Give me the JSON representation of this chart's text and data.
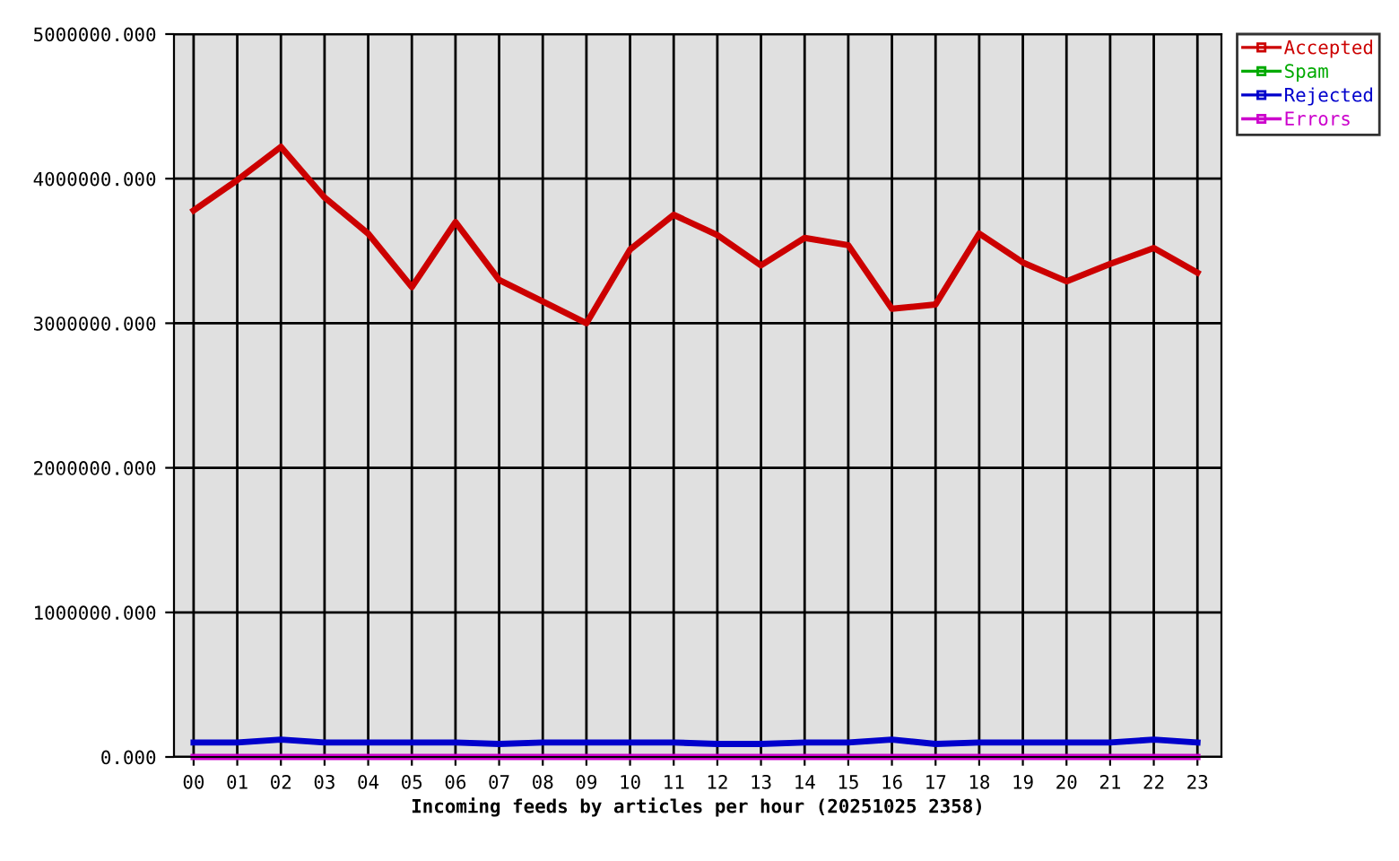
{
  "chart_data": {
    "type": "line",
    "xlabel": "Incoming feeds by articles per hour (20251025 2358)",
    "categories": [
      "00",
      "01",
      "02",
      "03",
      "04",
      "05",
      "06",
      "07",
      "08",
      "09",
      "10",
      "11",
      "12",
      "13",
      "14",
      "15",
      "16",
      "17",
      "18",
      "19",
      "20",
      "21",
      "22",
      "23"
    ],
    "series": [
      {
        "name": "Accepted",
        "color": "#cc0000",
        "values": [
          3780000,
          3990000,
          4220000,
          3870000,
          3620000,
          3250000,
          3700000,
          3300000,
          3150000,
          3000000,
          3510000,
          3750000,
          3610000,
          3400000,
          3590000,
          3540000,
          3100000,
          3130000,
          3620000,
          3420000,
          3290000,
          3410000,
          3520000,
          3350000
        ]
      },
      {
        "name": "Spam",
        "color": "#00aa00",
        "values": [
          null,
          null,
          null,
          null,
          null,
          null,
          null,
          null,
          null,
          null,
          null,
          null,
          null,
          null,
          null,
          null,
          null,
          null,
          null,
          null,
          null,
          null,
          null,
          null
        ]
      },
      {
        "name": "Rejected",
        "color": "#0000cc",
        "values": [
          100000,
          100000,
          120000,
          100000,
          100000,
          100000,
          100000,
          90000,
          100000,
          100000,
          100000,
          100000,
          90000,
          90000,
          100000,
          100000,
          120000,
          90000,
          100000,
          100000,
          100000,
          100000,
          120000,
          100000
        ]
      },
      {
        "name": "Errors",
        "color": "#cc00cc",
        "values": [
          0,
          0,
          0,
          0,
          0,
          0,
          0,
          0,
          0,
          0,
          0,
          0,
          0,
          0,
          0,
          0,
          0,
          0,
          0,
          0,
          0,
          0,
          0,
          0
        ]
      }
    ],
    "ylim": [
      0,
      5000000
    ],
    "yticks": [
      {
        "value": 0,
        "label": "0.000"
      },
      {
        "value": 1000000,
        "label": "1000000.000"
      },
      {
        "value": 2000000,
        "label": "2000000.000"
      },
      {
        "value": 3000000,
        "label": "3000000.000"
      },
      {
        "value": 4000000,
        "label": "4000000.000"
      },
      {
        "value": 5000000,
        "label": "5000000.000"
      }
    ],
    "grid": true,
    "legend": "top right",
    "marker": "none",
    "line_style": "solid"
  }
}
